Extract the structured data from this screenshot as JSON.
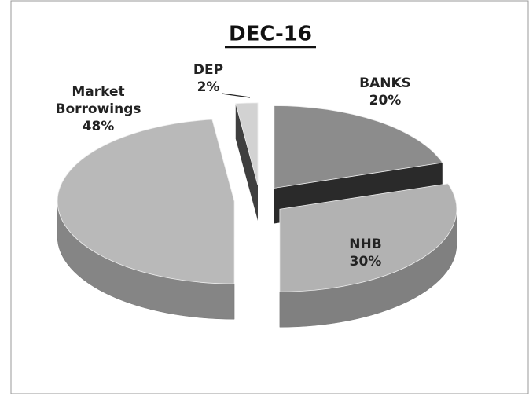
{
  "chart_data": {
    "type": "pie",
    "title": "DEC-16",
    "categories": [
      "BANKS",
      "NHB",
      "Market Borrowings",
      "DEP"
    ],
    "values": [
      20,
      30,
      48,
      2
    ],
    "value_labels": [
      "20%",
      "30%",
      "48%",
      "2%"
    ],
    "colors": [
      "#8c8c8c",
      "#b2b2b2",
      "#b9b9b9",
      "#d2d2d2"
    ]
  }
}
